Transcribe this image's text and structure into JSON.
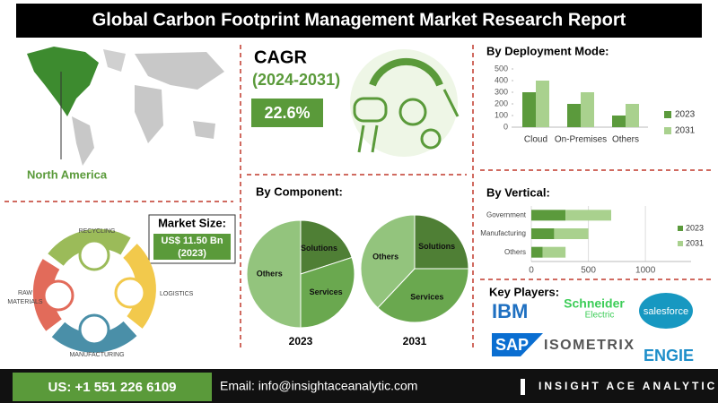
{
  "header": {
    "title": "Global Carbon Footprint Management Market Research Report"
  },
  "region": {
    "label": "North America"
  },
  "market_size": {
    "label": "Market Size:",
    "value": "US$ 11.50 Bn",
    "year": "(2023)"
  },
  "cycle": {
    "labels": [
      "RECYCLING",
      "LOGISTICS",
      "MANUFACTURING",
      "RAW",
      "MATERIALS"
    ]
  },
  "cagr": {
    "label": "CAGR",
    "period": "(2024-2031)",
    "value": "22.6%"
  },
  "chart_data": [
    {
      "type": "bar",
      "title": "By Deployment Mode:",
      "categories": [
        "Cloud",
        "On-Premises",
        "Others"
      ],
      "series": [
        {
          "name": "2023",
          "color": "#5b9a3c",
          "values": [
            300,
            200,
            100
          ]
        },
        {
          "name": "2031",
          "color": "#a9d18e",
          "values": [
            400,
            300,
            200
          ]
        }
      ],
      "ylim": [
        0,
        500
      ],
      "yticks": [
        0,
        100,
        200,
        300,
        400,
        500
      ]
    },
    {
      "type": "pie",
      "title": "By Component:",
      "categories": [
        "Solutions",
        "Services",
        "Others"
      ],
      "colors": [
        "#4f7f35",
        "#6aa84f",
        "#93c47d"
      ],
      "pies": [
        {
          "label": "2023",
          "values": [
            20,
            30,
            50
          ]
        },
        {
          "label": "2031",
          "values": [
            25,
            37,
            38
          ]
        }
      ]
    },
    {
      "type": "barh",
      "title": "By Vertical:",
      "stacked": true,
      "categories": [
        "Government",
        "Manufacturing",
        "Others"
      ],
      "series": [
        {
          "name": "2023",
          "color": "#5b9a3c",
          "values": [
            300,
            200,
            100
          ]
        },
        {
          "name": "2031",
          "color": "#a9d18e",
          "values": [
            400,
            300,
            200
          ]
        }
      ],
      "xlim": [
        0,
        1400
      ],
      "xticks": [
        0,
        500,
        1000
      ],
      "grid": true
    }
  ],
  "key_players": {
    "title": "Key Players:",
    "logos": [
      "IBM",
      "Schneider",
      "Electric",
      "salesforce",
      "SAP",
      "ISOMETRIX",
      "ENGIE"
    ]
  },
  "footer": {
    "phone": "US: +1 551 226 6109",
    "email": "Email: info@insightaceanalytic.com",
    "brand": "INSIGHT ACE ANALYTIC"
  }
}
